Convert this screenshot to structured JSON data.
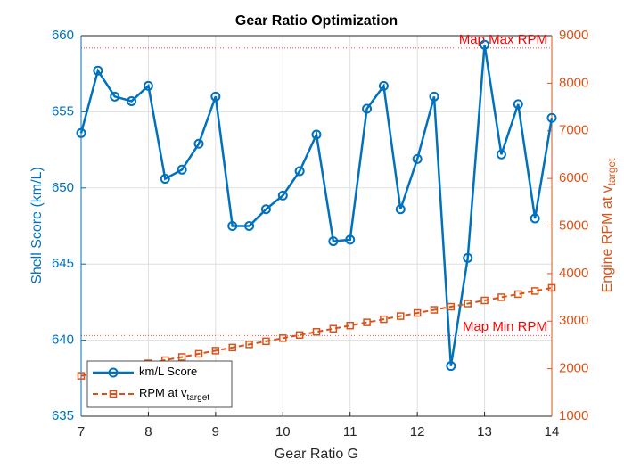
{
  "chart_data": {
    "type": "line",
    "title": "Gear Ratio Optimization",
    "xlabel": "Gear Ratio G",
    "ylabel": "Shell Score (km/L)",
    "y2label": "Engine RPM at v",
    "y2label_sub": "target",
    "x": [
      7,
      7.25,
      7.5,
      7.75,
      8,
      8.25,
      8.5,
      8.75,
      9,
      9.25,
      9.5,
      9.75,
      10,
      10.25,
      10.5,
      10.75,
      11,
      11.25,
      11.5,
      11.75,
      12,
      12.25,
      12.5,
      12.75,
      13,
      13.25,
      13.5,
      13.75,
      14
    ],
    "series": [
      {
        "name": "km/L Score",
        "color": "#0072bd",
        "axis": "y",
        "marker": "circle",
        "values": [
          653.6,
          657.7,
          656.0,
          655.7,
          656.7,
          650.6,
          651.2,
          652.9,
          656.0,
          647.5,
          647.5,
          648.6,
          649.5,
          651.1,
          653.5,
          646.5,
          646.6,
          655.2,
          656.7,
          648.6,
          651.9,
          656.0,
          638.3,
          645.4,
          659.4,
          652.2,
          655.5,
          648.0,
          654.6
        ]
      },
      {
        "name": "RPM at v",
        "name_sub": "target",
        "color": "#d95319",
        "axis": "y2",
        "marker": "square",
        "dashed": true,
        "values": [
          1850,
          1916,
          1982,
          2048,
          2114,
          2180,
          2246,
          2313,
          2379,
          2445,
          2511,
          2577,
          2643,
          2709,
          2775,
          2841,
          2907,
          2974,
          3040,
          3106,
          3172,
          3238,
          3304,
          3370,
          3436,
          3502,
          3568,
          3634,
          3700
        ]
      }
    ],
    "hlines": [
      {
        "value": 8740,
        "label": "Map Max RPM",
        "axis": "y2",
        "color": "#ff0000"
      },
      {
        "value": 2700,
        "label": "Map Min RPM",
        "axis": "y2",
        "color": "#ff0000"
      }
    ],
    "xlim": [
      7,
      14
    ],
    "xticks": [
      7,
      8,
      9,
      10,
      11,
      12,
      13,
      14
    ],
    "ylim": [
      635,
      660
    ],
    "yticks": [
      635,
      640,
      645,
      650,
      655,
      660
    ],
    "y2lim": [
      1000,
      9000
    ],
    "y2ticks": [
      1000,
      2000,
      3000,
      4000,
      5000,
      6000,
      7000,
      8000,
      9000
    ],
    "grid": true,
    "legend": "lower left"
  }
}
